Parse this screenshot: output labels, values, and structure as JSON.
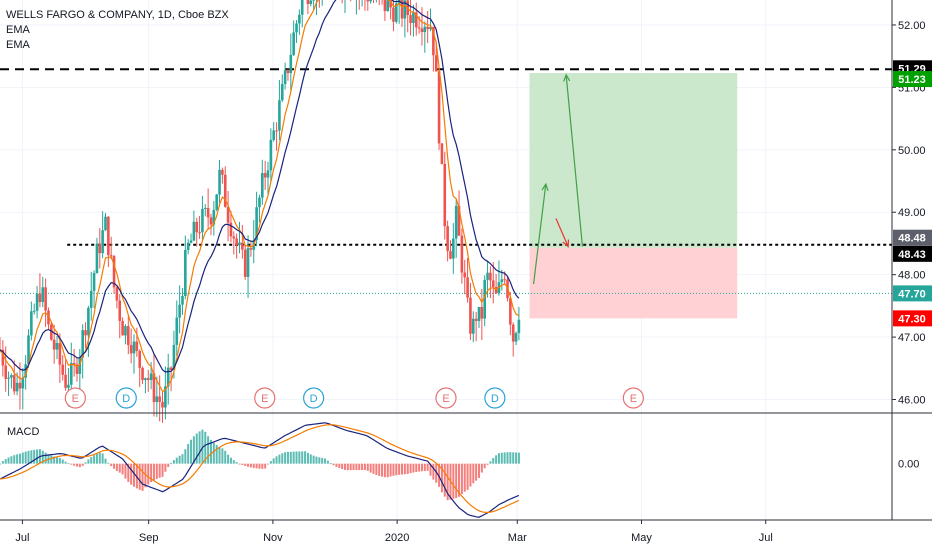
{
  "legend": {
    "title": "WELLS FARGO & COMPANY, 1D, Cboe BZX",
    "ema1": "EMA",
    "ema2": "EMA"
  },
  "macd_label": "MACD",
  "colors": {
    "up": "#26a69a",
    "down": "#ef5350",
    "ema_fast": "#f57c00",
    "ema_slow": "#1a237e",
    "profit_zone": "#c8e6c9",
    "loss_zone": "#ffcdd2",
    "current": "#26a69a",
    "stop": "#ff0000",
    "target": "#00a000",
    "resistance_badge": "#131722",
    "earnings": "#e57373",
    "dividend": "#29a3d6"
  },
  "chart_data": {
    "type": "candlestick",
    "x_axis": {
      "tick_labels": [
        "Jul",
        "Sep",
        "Nov",
        "2020",
        "Mar",
        "May",
        "Jul"
      ],
      "tick_days": [
        11,
        73,
        134,
        195,
        254,
        315,
        376
      ]
    },
    "y_axis": {
      "range": [
        45.8,
        52.4
      ],
      "tick_values": [
        46.0,
        47.0,
        48.0,
        49.0,
        50.0,
        51.0,
        52.0
      ],
      "tick_labels": [
        "46.00",
        "47.00",
        "48.00",
        "49.00",
        "50.00",
        "51.00",
        "52.00"
      ]
    },
    "x_range": [
      0,
      438
    ],
    "price_levels": {
      "target": {
        "value": 51.29,
        "label": "51.29"
      },
      "target_zone_top": {
        "value": 51.23,
        "label": "51.23"
      },
      "resistance": {
        "value": 48.48,
        "label": "48.48"
      },
      "entry": {
        "value": 48.43,
        "label": "48.43"
      },
      "current": {
        "value": 47.7,
        "label": "47.70"
      },
      "stop": {
        "value": 47.3,
        "label": "47.30"
      }
    },
    "position_box": {
      "x_start": 260,
      "x_end": 362,
      "entry": 48.43,
      "target": 51.23,
      "stop": 47.3
    },
    "trade_arrows": [
      {
        "from": [
          262,
          47.85
        ],
        "to": [
          268,
          49.45
        ],
        "color": "green"
      },
      {
        "from": [
          273,
          48.9
        ],
        "to": [
          279,
          48.45
        ],
        "color": "red"
      },
      {
        "from": [
          286,
          48.45
        ],
        "to": [
          278,
          51.2
        ],
        "color": "green"
      }
    ],
    "events": [
      {
        "day": 37,
        "type": "E",
        "label": "E"
      },
      {
        "day": 62,
        "type": "D",
        "label": "D"
      },
      {
        "day": 130,
        "type": "E",
        "label": "E"
      },
      {
        "day": 154,
        "type": "D",
        "label": "D"
      },
      {
        "day": 219,
        "type": "E",
        "label": "E"
      },
      {
        "day": 243,
        "type": "D",
        "label": "D"
      },
      {
        "day": 311,
        "type": "E",
        "label": "E"
      }
    ],
    "waypoints": [
      [
        0,
        46.8
      ],
      [
        4,
        46.4
      ],
      [
        8,
        46.2
      ],
      [
        12,
        46.6
      ],
      [
        16,
        47.3
      ],
      [
        20,
        47.8
      ],
      [
        24,
        47.1
      ],
      [
        28,
        46.7
      ],
      [
        32,
        46.3
      ],
      [
        36,
        46.4
      ],
      [
        40,
        46.9
      ],
      [
        44,
        47.6
      ],
      [
        48,
        48.4
      ],
      [
        52,
        48.8
      ],
      [
        56,
        47.8
      ],
      [
        60,
        47.2
      ],
      [
        64,
        47.0
      ],
      [
        68,
        46.6
      ],
      [
        72,
        46.4
      ],
      [
        76,
        46.1
      ],
      [
        80,
        45.9
      ],
      [
        84,
        46.5
      ],
      [
        88,
        47.5
      ],
      [
        92,
        48.4
      ],
      [
        96,
        48.7
      ],
      [
        100,
        48.9
      ],
      [
        104,
        49.0
      ],
      [
        108,
        49.6
      ],
      [
        112,
        49.0
      ],
      [
        116,
        48.5
      ],
      [
        120,
        48.1
      ],
      [
        124,
        48.6
      ],
      [
        128,
        49.3
      ],
      [
        132,
        49.9
      ],
      [
        136,
        50.5
      ],
      [
        140,
        51.1
      ],
      [
        144,
        51.8
      ],
      [
        148,
        52.4
      ],
      [
        152,
        52.6
      ],
      [
        160,
        52.8
      ],
      [
        170,
        52.7
      ],
      [
        180,
        52.5
      ],
      [
        190,
        52.3
      ],
      [
        200,
        52.2
      ],
      [
        208,
        52.1
      ],
      [
        212,
        52.0
      ],
      [
        214,
        51.2
      ],
      [
        216,
        50.1
      ],
      [
        218,
        49.0
      ],
      [
        220,
        48.5
      ],
      [
        222,
        48.4
      ],
      [
        224,
        48.9
      ],
      [
        226,
        48.4
      ],
      [
        228,
        47.9
      ],
      [
        230,
        47.3
      ],
      [
        232,
        47.1
      ],
      [
        234,
        47.4
      ],
      [
        236,
        47.2
      ],
      [
        238,
        47.8
      ],
      [
        240,
        48.0
      ],
      [
        242,
        47.7
      ],
      [
        244,
        47.6
      ],
      [
        246,
        47.9
      ],
      [
        248,
        48.1
      ],
      [
        250,
        47.5
      ],
      [
        252,
        47.0
      ],
      [
        254,
        47.3
      ],
      [
        256,
        47.7
      ]
    ],
    "macd": {
      "zero_label": "0.00",
      "range": [
        -1.1,
        0.95
      ],
      "waypoints": [
        [
          0,
          -0.3
        ],
        [
          10,
          -0.1
        ],
        [
          20,
          0.15
        ],
        [
          30,
          0.2
        ],
        [
          40,
          0.1
        ],
        [
          50,
          0.35
        ],
        [
          60,
          0.1
        ],
        [
          70,
          -0.4
        ],
        [
          80,
          -0.55
        ],
        [
          90,
          -0.3
        ],
        [
          100,
          0.35
        ],
        [
          110,
          0.5
        ],
        [
          120,
          0.4
        ],
        [
          130,
          0.3
        ],
        [
          140,
          0.55
        ],
        [
          150,
          0.75
        ],
        [
          160,
          0.8
        ],
        [
          170,
          0.65
        ],
        [
          180,
          0.55
        ],
        [
          190,
          0.3
        ],
        [
          200,
          0.15
        ],
        [
          210,
          0.05
        ],
        [
          215,
          -0.2
        ],
        [
          220,
          -0.6
        ],
        [
          225,
          -0.85
        ],
        [
          230,
          -1.0
        ],
        [
          235,
          -1.05
        ],
        [
          240,
          -0.95
        ],
        [
          245,
          -0.8
        ],
        [
          250,
          -0.7
        ],
        [
          256,
          -0.6
        ]
      ]
    }
  }
}
